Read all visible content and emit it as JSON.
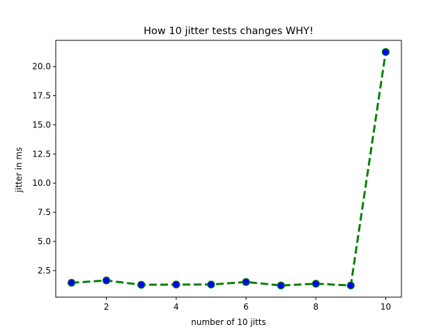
{
  "chart_data": {
    "type": "line",
    "title": "How 10 jitter tests changes WHY!",
    "xlabel": "number of 10 jitts",
    "ylabel": "jitter in ms",
    "x": [
      1,
      2,
      3,
      4,
      5,
      6,
      7,
      8,
      9,
      10
    ],
    "series": [
      {
        "values": [
          1.45,
          1.65,
          1.28,
          1.3,
          1.3,
          1.52,
          1.22,
          1.37,
          1.22,
          21.25
        ]
      }
    ],
    "xlim": [
      0.55,
      10.45
    ],
    "ylim": [
      0.22,
      22.25
    ],
    "xticks": [
      2,
      4,
      6,
      8,
      10
    ],
    "xtick_labels": [
      "2",
      "4",
      "6",
      "8",
      "10"
    ],
    "yticks": [
      2.5,
      5.0,
      7.5,
      10.0,
      12.5,
      15.0,
      17.5,
      20.0
    ],
    "ytick_labels": [
      "2.5",
      "5.0",
      "7.5",
      "10.0",
      "12.5",
      "15.0",
      "17.5",
      "20.0"
    ],
    "grid": false,
    "colors": {
      "line": "#008000",
      "marker_face": "#0000ff",
      "marker_edge": "#008000"
    }
  }
}
